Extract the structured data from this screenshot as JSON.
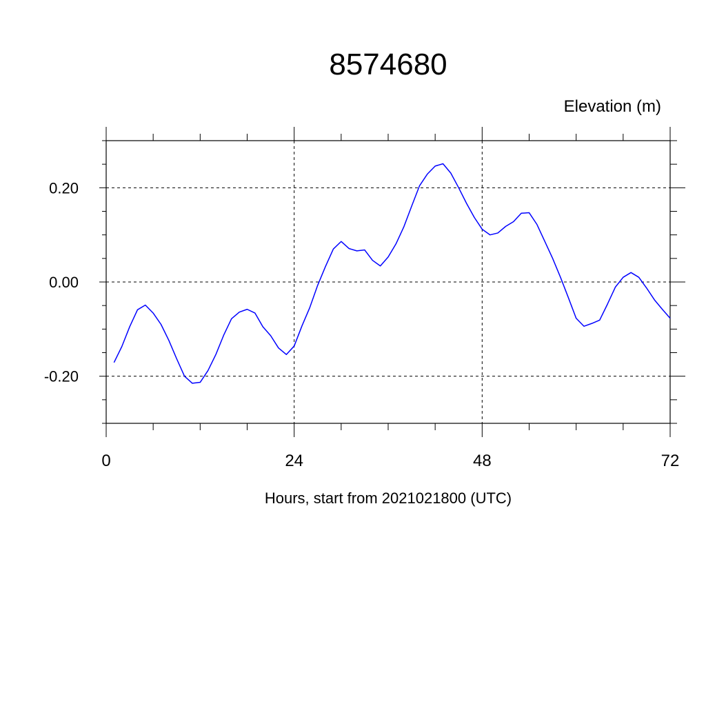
{
  "chart_data": {
    "type": "line",
    "title": "8574680",
    "ylabel": "Elevation (m)",
    "xlabel": "Hours, start from 2021021800 (UTC)",
    "xlim": [
      0,
      72
    ],
    "ylim": [
      -0.3,
      0.3
    ],
    "x_ticks": [
      0,
      24,
      48,
      72
    ],
    "x_tick_labels": [
      "0",
      "24",
      "48",
      "72"
    ],
    "y_ticks": [
      -0.2,
      0.0,
      0.2
    ],
    "y_tick_labels": [
      "-0.20",
      "0.00",
      "0.20"
    ],
    "grid": true,
    "line_color": "#0000ff",
    "series": [
      {
        "x": [
          1,
          2,
          3,
          4,
          5,
          6,
          7,
          8,
          9,
          10,
          11,
          12,
          13,
          14,
          15,
          16,
          17,
          18,
          19,
          20,
          21,
          22,
          23,
          24,
          25,
          26,
          27,
          28,
          29,
          30,
          31,
          32,
          33,
          34,
          35,
          36,
          37,
          38,
          39,
          40,
          41,
          42,
          43,
          44,
          45,
          46,
          47,
          48,
          49,
          50,
          51,
          52,
          53,
          54,
          55,
          56,
          57,
          58,
          59,
          60,
          61,
          62,
          63,
          64,
          65,
          66,
          67,
          68,
          69,
          70,
          71,
          72
        ],
        "values": [
          -0.171,
          -0.137,
          -0.095,
          -0.059,
          -0.049,
          -0.066,
          -0.09,
          -0.124,
          -0.163,
          -0.2,
          -0.215,
          -0.213,
          -0.188,
          -0.154,
          -0.113,
          -0.078,
          -0.064,
          -0.058,
          -0.066,
          -0.095,
          -0.114,
          -0.14,
          -0.154,
          -0.136,
          -0.093,
          -0.054,
          -0.007,
          0.033,
          0.07,
          0.086,
          0.071,
          0.066,
          0.068,
          0.046,
          0.034,
          0.053,
          0.081,
          0.117,
          0.161,
          0.204,
          0.229,
          0.246,
          0.251,
          0.231,
          0.2,
          0.167,
          0.137,
          0.112,
          0.1,
          0.104,
          0.118,
          0.128,
          0.146,
          0.147,
          0.122,
          0.086,
          0.05,
          0.01,
          -0.033,
          -0.077,
          -0.094,
          -0.088,
          -0.081,
          -0.047,
          -0.011,
          0.01,
          0.02,
          0.01,
          -0.013,
          -0.038,
          -0.058,
          -0.077
        ]
      }
    ]
  }
}
